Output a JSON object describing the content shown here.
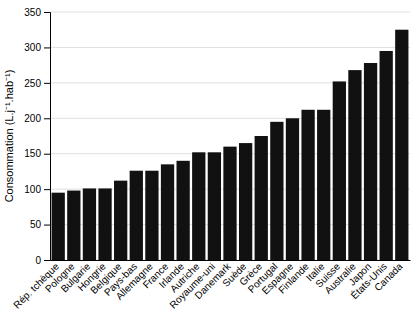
{
  "chart_data": {
    "type": "bar",
    "ylabel": "Consommation (L.j⁻¹.hab⁻¹)",
    "categories": [
      "Rép. tchèque",
      "Pologne",
      "Bulgarie",
      "Hongrie",
      "Belgique",
      "Pays-bas",
      "Allemagne",
      "France",
      "Irlande",
      "Autriche",
      "Royaume-uni",
      "Danemark",
      "Suède",
      "Grèce",
      "Portugal",
      "Espagne",
      "Finlande",
      "Italie",
      "Suisse",
      "Australie",
      "Japon",
      "États-Unis",
      "Canada"
    ],
    "values": [
      95,
      98,
      101,
      101,
      112,
      126,
      126,
      135,
      140,
      152,
      152,
      160,
      165,
      175,
      195,
      200,
      212,
      212,
      252,
      268,
      278,
      295,
      325
    ],
    "color": "#111111",
    "ylim": [
      0,
      350
    ],
    "yticks": [
      0,
      50,
      100,
      150,
      200,
      250,
      300,
      350
    ],
    "grid": true
  }
}
